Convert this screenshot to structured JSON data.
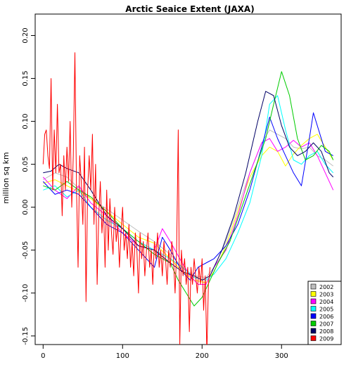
{
  "chart_data": {
    "type": "line",
    "title": "Arctic Seaice Extent (JAXA)",
    "xlabel": "",
    "ylabel": "million sq km",
    "xlim": [
      -10,
      375
    ],
    "ylim": [
      -0.16,
      0.225
    ],
    "x_ticks": [
      0,
      100,
      200,
      300
    ],
    "y_ticks": [
      -0.15,
      -0.1,
      -0.05,
      0.0,
      0.05,
      0.1,
      0.15,
      0.2
    ],
    "y_tick_labels": [
      "-0.15",
      "-0.10",
      "-0.05",
      "0.00",
      "0.05",
      "0.10",
      "0.15",
      "0.20"
    ],
    "legend_position": "bottom-right",
    "grid": false,
    "series": [
      {
        "name": "2002",
        "color": "#bebebe",
        "points": [
          [
            0,
            0.032
          ],
          [
            15,
            0.04
          ],
          [
            30,
            0.035
          ],
          [
            45,
            0.022
          ],
          [
            60,
            0.01
          ],
          [
            80,
            -0.002
          ],
          [
            100,
            -0.015
          ],
          [
            120,
            -0.028
          ],
          [
            140,
            -0.04
          ],
          [
            160,
            -0.055
          ],
          [
            175,
            -0.07
          ],
          [
            190,
            -0.08
          ],
          [
            205,
            -0.082
          ],
          [
            215,
            -0.07
          ],
          [
            230,
            -0.04
          ],
          [
            245,
            0.0
          ],
          [
            260,
            0.04
          ],
          [
            275,
            0.075
          ],
          [
            285,
            0.09
          ],
          [
            295,
            0.085
          ],
          [
            305,
            0.08
          ],
          [
            315,
            0.07
          ],
          [
            325,
            0.068
          ],
          [
            335,
            0.07
          ],
          [
            345,
            0.06
          ],
          [
            355,
            0.055
          ],
          [
            365,
            0.048
          ]
        ]
      },
      {
        "name": "2003",
        "color": "#ffff00",
        "points": [
          [
            0,
            0.028
          ],
          [
            15,
            0.032
          ],
          [
            30,
            0.025
          ],
          [
            45,
            0.018
          ],
          [
            60,
            0.01
          ],
          [
            80,
            -0.005
          ],
          [
            100,
            -0.02
          ],
          [
            120,
            -0.035
          ],
          [
            140,
            -0.042
          ],
          [
            160,
            -0.06
          ],
          [
            175,
            -0.075
          ],
          [
            190,
            -0.085
          ],
          [
            205,
            -0.088
          ],
          [
            215,
            -0.075
          ],
          [
            230,
            -0.045
          ],
          [
            245,
            -0.005
          ],
          [
            260,
            0.035
          ],
          [
            275,
            0.06
          ],
          [
            285,
            0.07
          ],
          [
            295,
            0.065
          ],
          [
            305,
            0.048
          ],
          [
            315,
            0.062
          ],
          [
            325,
            0.072
          ],
          [
            335,
            0.08
          ],
          [
            345,
            0.085
          ],
          [
            355,
            0.07
          ],
          [
            365,
            0.055
          ]
        ]
      },
      {
        "name": "2004",
        "color": "#ff00ff",
        "points": [
          [
            0,
            0.035
          ],
          [
            15,
            0.02
          ],
          [
            30,
            0.01
          ],
          [
            45,
            0.025
          ],
          [
            60,
            0.005
          ],
          [
            80,
            -0.01
          ],
          [
            100,
            -0.03
          ],
          [
            120,
            -0.045
          ],
          [
            140,
            -0.05
          ],
          [
            150,
            -0.025
          ],
          [
            160,
            -0.04
          ],
          [
            175,
            -0.065
          ],
          [
            185,
            -0.08
          ],
          [
            195,
            -0.09
          ],
          [
            205,
            -0.09
          ],
          [
            215,
            -0.07
          ],
          [
            230,
            -0.05
          ],
          [
            245,
            -0.01
          ],
          [
            260,
            0.04
          ],
          [
            275,
            0.075
          ],
          [
            285,
            0.08
          ],
          [
            295,
            0.065
          ],
          [
            305,
            0.07
          ],
          [
            315,
            0.078
          ],
          [
            325,
            0.07
          ],
          [
            335,
            0.075
          ],
          [
            345,
            0.06
          ],
          [
            355,
            0.04
          ],
          [
            365,
            0.02
          ]
        ]
      },
      {
        "name": "2005",
        "color": "#00ffff",
        "points": [
          [
            0,
            0.02
          ],
          [
            15,
            0.025
          ],
          [
            30,
            0.012
          ],
          [
            45,
            0.02
          ],
          [
            60,
            0.0
          ],
          [
            80,
            -0.015
          ],
          [
            100,
            -0.025
          ],
          [
            120,
            -0.04
          ],
          [
            140,
            -0.05
          ],
          [
            160,
            -0.06
          ],
          [
            175,
            -0.07
          ],
          [
            190,
            -0.082
          ],
          [
            205,
            -0.085
          ],
          [
            215,
            -0.078
          ],
          [
            230,
            -0.06
          ],
          [
            245,
            -0.03
          ],
          [
            260,
            0.005
          ],
          [
            275,
            0.06
          ],
          [
            285,
            0.12
          ],
          [
            295,
            0.13
          ],
          [
            305,
            0.09
          ],
          [
            315,
            0.055
          ],
          [
            325,
            0.05
          ],
          [
            335,
            0.06
          ],
          [
            345,
            0.065
          ],
          [
            355,
            0.05
          ],
          [
            365,
            0.04
          ]
        ]
      },
      {
        "name": "2006",
        "color": "#0000ff",
        "points": [
          [
            0,
            0.03
          ],
          [
            15,
            0.015
          ],
          [
            30,
            0.02
          ],
          [
            45,
            0.015
          ],
          [
            60,
            0.0
          ],
          [
            80,
            -0.02
          ],
          [
            100,
            -0.03
          ],
          [
            120,
            -0.05
          ],
          [
            140,
            -0.07
          ],
          [
            150,
            -0.035
          ],
          [
            160,
            -0.05
          ],
          [
            175,
            -0.075
          ],
          [
            185,
            -0.085
          ],
          [
            195,
            -0.07
          ],
          [
            205,
            -0.065
          ],
          [
            215,
            -0.06
          ],
          [
            230,
            -0.045
          ],
          [
            245,
            -0.02
          ],
          [
            260,
            0.02
          ],
          [
            275,
            0.07
          ],
          [
            285,
            0.105
          ],
          [
            295,
            0.08
          ],
          [
            305,
            0.06
          ],
          [
            315,
            0.04
          ],
          [
            325,
            0.025
          ],
          [
            335,
            0.08
          ],
          [
            340,
            0.11
          ],
          [
            345,
            0.095
          ],
          [
            355,
            0.065
          ],
          [
            365,
            0.06
          ]
        ]
      },
      {
        "name": "2007",
        "color": "#00cc00",
        "points": [
          [
            0,
            0.025
          ],
          [
            15,
            0.02
          ],
          [
            30,
            0.03
          ],
          [
            45,
            0.02
          ],
          [
            60,
            0.012
          ],
          [
            80,
            -0.005
          ],
          [
            100,
            -0.025
          ],
          [
            120,
            -0.04
          ],
          [
            140,
            -0.055
          ],
          [
            160,
            -0.065
          ],
          [
            170,
            -0.085
          ],
          [
            180,
            -0.1
          ],
          [
            190,
            -0.115
          ],
          [
            200,
            -0.105
          ],
          [
            210,
            -0.085
          ],
          [
            220,
            -0.065
          ],
          [
            235,
            -0.04
          ],
          [
            250,
            0.0
          ],
          [
            265,
            0.04
          ],
          [
            280,
            0.08
          ],
          [
            290,
            0.12
          ],
          [
            300,
            0.158
          ],
          [
            310,
            0.13
          ],
          [
            320,
            0.08
          ],
          [
            330,
            0.055
          ],
          [
            340,
            0.06
          ],
          [
            350,
            0.072
          ],
          [
            360,
            0.065
          ],
          [
            365,
            0.055
          ]
        ]
      },
      {
        "name": "2008",
        "color": "#000066",
        "points": [
          [
            0,
            0.04
          ],
          [
            10,
            0.042
          ],
          [
            20,
            0.05
          ],
          [
            30,
            0.045
          ],
          [
            45,
            0.04
          ],
          [
            60,
            0.02
          ],
          [
            80,
            -0.01
          ],
          [
            100,
            -0.025
          ],
          [
            120,
            -0.045
          ],
          [
            140,
            -0.05
          ],
          [
            160,
            -0.065
          ],
          [
            175,
            -0.075
          ],
          [
            190,
            -0.08
          ],
          [
            200,
            -0.085
          ],
          [
            210,
            -0.08
          ],
          [
            225,
            -0.05
          ],
          [
            240,
            -0.01
          ],
          [
            255,
            0.04
          ],
          [
            270,
            0.1
          ],
          [
            280,
            0.135
          ],
          [
            290,
            0.13
          ],
          [
            300,
            0.095
          ],
          [
            310,
            0.07
          ],
          [
            320,
            0.06
          ],
          [
            330,
            0.065
          ],
          [
            340,
            0.075
          ],
          [
            350,
            0.065
          ],
          [
            360,
            0.04
          ],
          [
            365,
            0.035
          ]
        ]
      },
      {
        "name": "2009",
        "color": "#ff0000",
        "points": [
          [
            0,
            0.05
          ],
          [
            2,
            0.085
          ],
          [
            4,
            0.09
          ],
          [
            6,
            0.06
          ],
          [
            8,
            0.045
          ],
          [
            10,
            0.15
          ],
          [
            12,
            0.02
          ],
          [
            14,
            0.09
          ],
          [
            16,
            0.04
          ],
          [
            18,
            0.12
          ],
          [
            20,
            0.04
          ],
          [
            22,
            0.05
          ],
          [
            24,
            -0.01
          ],
          [
            26,
            0.06
          ],
          [
            28,
            0.02
          ],
          [
            30,
            0.07
          ],
          [
            32,
            0.03
          ],
          [
            34,
            0.1
          ],
          [
            36,
            0.0
          ],
          [
            38,
            0.06
          ],
          [
            40,
            0.18
          ],
          [
            42,
            0.02
          ],
          [
            44,
            -0.07
          ],
          [
            46,
            0.06
          ],
          [
            48,
            0.03
          ],
          [
            50,
            -0.02
          ],
          [
            52,
            0.07
          ],
          [
            54,
            -0.11
          ],
          [
            56,
            0.02
          ],
          [
            58,
            0.06
          ],
          [
            60,
            0.02
          ],
          [
            62,
            0.085
          ],
          [
            64,
            -0.02
          ],
          [
            66,
            0.05
          ],
          [
            68,
            -0.09
          ],
          [
            70,
            -0.01
          ],
          [
            72,
            0.03
          ],
          [
            74,
            -0.03
          ],
          [
            76,
            0.0
          ],
          [
            78,
            -0.07
          ],
          [
            80,
            0.02
          ],
          [
            82,
            -0.05
          ],
          [
            84,
            0.01
          ],
          [
            86,
            -0.03
          ],
          [
            88,
            -0.055
          ],
          [
            90,
            0.0
          ],
          [
            92,
            -0.04
          ],
          [
            94,
            -0.02
          ],
          [
            96,
            -0.07
          ],
          [
            98,
            -0.03
          ],
          [
            100,
            0.0
          ],
          [
            102,
            -0.05
          ],
          [
            104,
            -0.03
          ],
          [
            106,
            -0.06
          ],
          [
            108,
            -0.02
          ],
          [
            110,
            -0.07
          ],
          [
            112,
            -0.04
          ],
          [
            114,
            -0.08
          ],
          [
            116,
            -0.03
          ],
          [
            118,
            -0.05
          ],
          [
            120,
            -0.1
          ],
          [
            122,
            -0.03
          ],
          [
            124,
            -0.06
          ],
          [
            126,
            -0.04
          ],
          [
            128,
            -0.08
          ],
          [
            130,
            -0.05
          ],
          [
            132,
            -0.03
          ],
          [
            134,
            -0.07
          ],
          [
            136,
            -0.05
          ],
          [
            138,
            -0.09
          ],
          [
            140,
            -0.04
          ],
          [
            142,
            -0.06
          ],
          [
            144,
            -0.03
          ],
          [
            146,
            -0.07
          ],
          [
            148,
            -0.05
          ],
          [
            150,
            -0.08
          ],
          [
            152,
            -0.04
          ],
          [
            154,
            -0.06
          ],
          [
            156,
            -0.09
          ],
          [
            158,
            -0.05
          ],
          [
            160,
            -0.07
          ],
          [
            162,
            -0.04
          ],
          [
            164,
            -0.06
          ],
          [
            166,
            -0.1
          ],
          [
            168,
            -0.05
          ],
          [
            170,
            0.09
          ],
          [
            172,
            -0.16
          ],
          [
            174,
            -0.05
          ],
          [
            176,
            -0.08
          ],
          [
            178,
            -0.06
          ],
          [
            180,
            -0.09
          ],
          [
            182,
            -0.07
          ],
          [
            184,
            -0.145
          ],
          [
            186,
            -0.07
          ],
          [
            188,
            -0.09
          ],
          [
            190,
            -0.06
          ],
          [
            192,
            -0.08
          ],
          [
            194,
            -0.1
          ],
          [
            196,
            -0.07
          ],
          [
            198,
            -0.09
          ],
          [
            200,
            -0.06
          ],
          [
            202,
            -0.12
          ],
          [
            204,
            -0.08
          ],
          [
            206,
            -0.17
          ],
          [
            208,
            -0.09
          ],
          [
            210,
            -0.07
          ]
        ]
      }
    ]
  }
}
